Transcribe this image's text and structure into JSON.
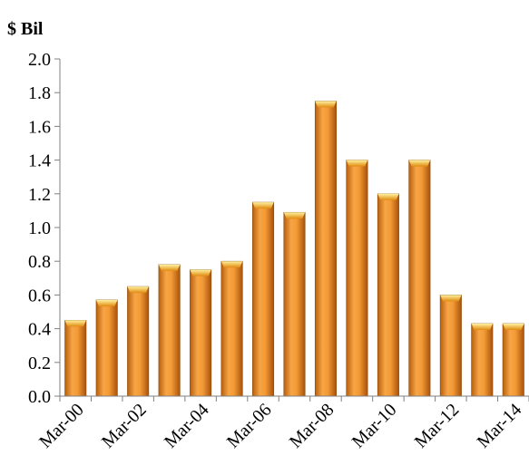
{
  "chart_data": {
    "type": "bar",
    "title": "",
    "unit_label": "$ Bil",
    "xlabel": "",
    "ylabel": "",
    "categories": [
      "Mar-00",
      "Mar-01",
      "Mar-02",
      "Mar-03",
      "Mar-04",
      "Mar-05",
      "Mar-06",
      "Mar-07",
      "Mar-08",
      "Mar-09",
      "Mar-10",
      "Mar-11",
      "Mar-12",
      "Mar-13",
      "Mar-14"
    ],
    "x_tick_labels_shown": [
      "Mar-00",
      "Mar-02",
      "Mar-04",
      "Mar-06",
      "Mar-08",
      "Mar-10",
      "Mar-12",
      "Mar-14"
    ],
    "values": [
      0.45,
      0.57,
      0.65,
      0.78,
      0.75,
      0.8,
      1.15,
      1.09,
      1.75,
      1.4,
      1.2,
      1.4,
      0.6,
      0.43,
      0.43
    ],
    "ylim": [
      0,
      2.0
    ],
    "y_ticks": [
      "0.0",
      "0.2",
      "0.4",
      "0.6",
      "0.8",
      "1.0",
      "1.2",
      "1.4",
      "1.6",
      "1.8",
      "2.0"
    ],
    "grid": false,
    "legend": "none",
    "bar_color": "#f0962a",
    "title_color": "#1f7a1f"
  }
}
